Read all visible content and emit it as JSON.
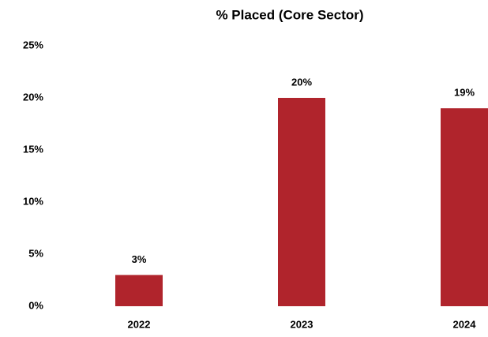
{
  "chart_data": {
    "type": "bar",
    "title": "% Placed (Core Sector)",
    "categories": [
      "2022",
      "2023",
      "2024"
    ],
    "values": [
      3,
      20,
      19
    ],
    "value_labels": [
      "3%",
      "20%",
      "19%"
    ],
    "color": "#b0242c",
    "ylim": [
      0,
      25
    ],
    "yticks": [
      {
        "value": 0,
        "label": "0%"
      },
      {
        "value": 5,
        "label": "5%"
      },
      {
        "value": 10,
        "label": "10%"
      },
      {
        "value": 15,
        "label": "15%"
      },
      {
        "value": 20,
        "label": "20%"
      },
      {
        "value": 25,
        "label": "25%"
      }
    ],
    "grid": false
  }
}
